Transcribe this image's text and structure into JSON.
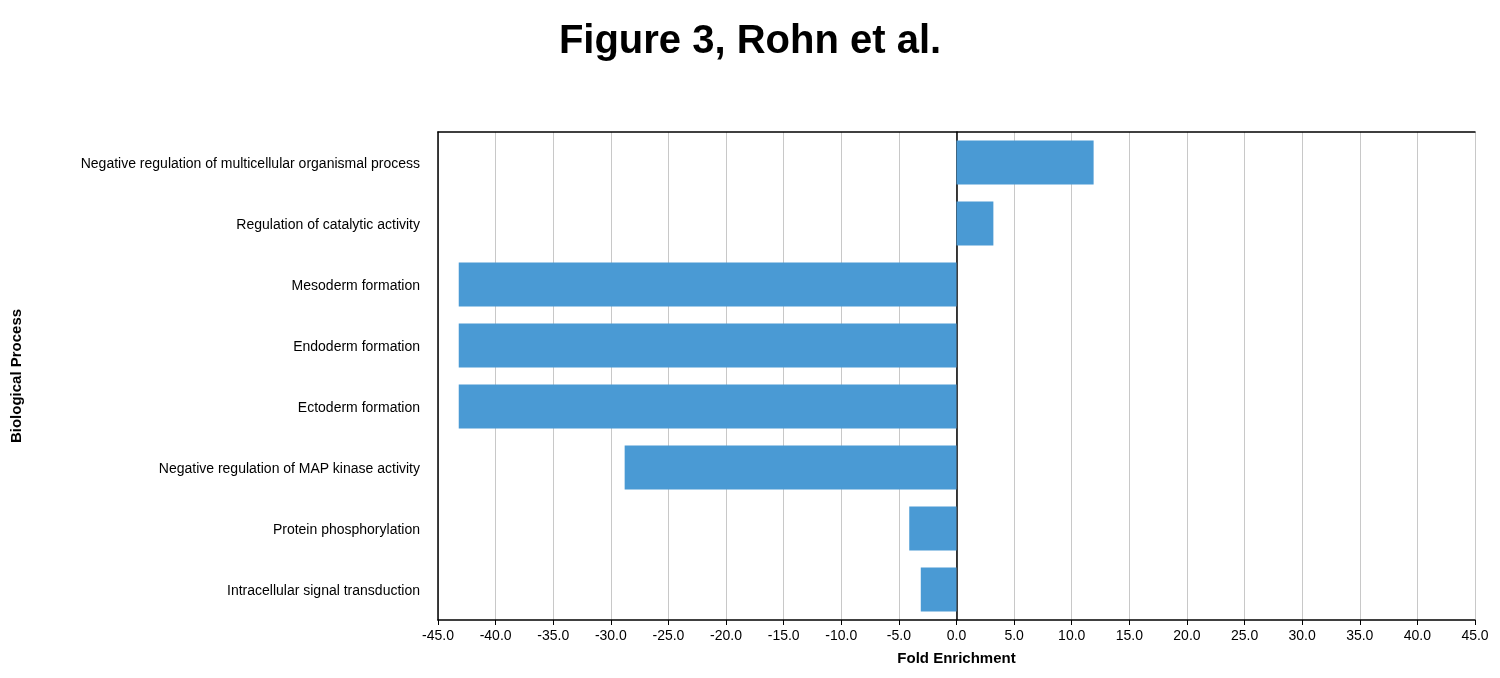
{
  "chart_data": {
    "type": "bar",
    "title": "Figure 3, Rohn et al.",
    "xlabel": "Fold Enrichment",
    "ylabel": "Biological Process",
    "orientation": "horizontal",
    "categories": [
      "Negative regulation of multicellular organismal process",
      "Regulation of catalytic activity",
      "Mesoderm formation",
      "Endoderm formation",
      "Ectoderm formation",
      "Negative regulation of MAP kinase activity",
      "Protein phosphorylation",
      "Intracellular signal transduction"
    ],
    "values": [
      11.9,
      3.2,
      -43.2,
      -43.2,
      -43.2,
      -28.8,
      -4.1,
      -3.1
    ],
    "color": "#4a9ad4",
    "xlim": [
      -45,
      45
    ],
    "xticks": [
      {
        "value": -45,
        "label": "-45.0"
      },
      {
        "value": -40,
        "label": "-40.0"
      },
      {
        "value": -35,
        "label": "-35.0"
      },
      {
        "value": -30,
        "label": "-30.0"
      },
      {
        "value": -25,
        "label": "-25.0"
      },
      {
        "value": -20,
        "label": "-20.0"
      },
      {
        "value": -15,
        "label": "-15.0"
      },
      {
        "value": -10,
        "label": "-10.0"
      },
      {
        "value": -5,
        "label": "-5.0"
      },
      {
        "value": 0,
        "label": "0.0"
      },
      {
        "value": 5,
        "label": "5.0"
      },
      {
        "value": 10,
        "label": "10.0"
      },
      {
        "value": 15,
        "label": "15.0"
      },
      {
        "value": 20,
        "label": "20.0"
      },
      {
        "value": 25,
        "label": "25.0"
      },
      {
        "value": 30,
        "label": "30.0"
      },
      {
        "value": 35,
        "label": "35.0"
      },
      {
        "value": 40,
        "label": "40.0"
      },
      {
        "value": 45,
        "label": "45.0"
      }
    ],
    "grid": "x"
  }
}
